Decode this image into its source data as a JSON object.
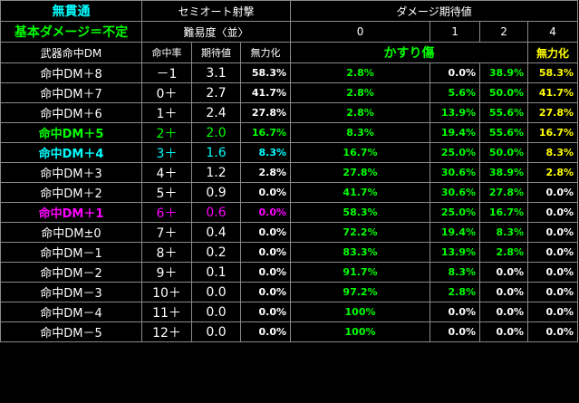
{
  "header": {
    "nopen": "無貫通",
    "basic": "基本ダメージ＝不定",
    "weapon_dm": "武器命中DM",
    "semi": "セミオート射撃",
    "difficulty": "難易度〈並〉",
    "expected": "ダメージ期待値",
    "hit_rate": "命中率",
    "expect_val": "期待値",
    "nullify": "無力化",
    "graze": "かすり傷",
    "nullify2": "無力化",
    "col0": "0",
    "col1": "1",
    "col2": "2",
    "col4": "4"
  },
  "colors": {
    "cyan": "#00ffff",
    "green": "#00ff00",
    "yellow": "#ffff00",
    "magenta": "#ff00ff"
  },
  "rows": [
    {
      "dm": "命中DM＋8",
      "rate": "－1",
      "exp": "3.1",
      "nul": "58.3%",
      "c0": "2.8%",
      "c1": "0.0%",
      "c2": "38.9%",
      "c4": "58.3%",
      "color": "white"
    },
    {
      "dm": "命中DM＋7",
      "rate": "0＋",
      "exp": "2.7",
      "nul": "41.7%",
      "c0": "2.8%",
      "c1": "5.6%",
      "c2": "50.0%",
      "c4": "41.7%",
      "color": "white"
    },
    {
      "dm": "命中DM＋6",
      "rate": "1＋",
      "exp": "2.4",
      "nul": "27.8%",
      "c0": "2.8%",
      "c1": "13.9%",
      "c2": "55.6%",
      "c4": "27.8%",
      "color": "white"
    },
    {
      "dm": "命中DM＋5",
      "rate": "2＋",
      "exp": "2.0",
      "nul": "16.7%",
      "c0": "8.3%",
      "c1": "19.4%",
      "c2": "55.6%",
      "c4": "16.7%",
      "color": "lime"
    },
    {
      "dm": "命中DM＋4",
      "rate": "3＋",
      "exp": "1.6",
      "nul": "8.3%",
      "c0": "16.7%",
      "c1": "25.0%",
      "c2": "50.0%",
      "c4": "8.3%",
      "color": "cyan"
    },
    {
      "dm": "命中DM＋3",
      "rate": "4＋",
      "exp": "1.2",
      "nul": "2.8%",
      "c0": "27.8%",
      "c1": "30.6%",
      "c2": "38.9%",
      "c4": "2.8%",
      "color": "white"
    },
    {
      "dm": "命中DM＋2",
      "rate": "5＋",
      "exp": "0.9",
      "nul": "0.0%",
      "c0": "41.7%",
      "c1": "30.6%",
      "c2": "27.8%",
      "c4": "0.0%",
      "color": "white"
    },
    {
      "dm": "命中DM＋1",
      "rate": "6＋",
      "exp": "0.6",
      "nul": "0.0%",
      "c0": "58.3%",
      "c1": "25.0%",
      "c2": "16.7%",
      "c4": "0.0%",
      "color": "magenta"
    },
    {
      "dm": "命中DM±0",
      "rate": "7＋",
      "exp": "0.4",
      "nul": "0.0%",
      "c0": "72.2%",
      "c1": "19.4%",
      "c2": "8.3%",
      "c4": "0.0%",
      "color": "white"
    },
    {
      "dm": "命中DM－1",
      "rate": "8＋",
      "exp": "0.2",
      "nul": "0.0%",
      "c0": "83.3%",
      "c1": "13.9%",
      "c2": "2.8%",
      "c4": "0.0%",
      "color": "white"
    },
    {
      "dm": "命中DM－2",
      "rate": "9＋",
      "exp": "0.1",
      "nul": "0.0%",
      "c0": "91.7%",
      "c1": "8.3%",
      "c2": "0.0%",
      "c4": "0.0%",
      "color": "white"
    },
    {
      "dm": "命中DM－3",
      "rate": "10＋",
      "exp": "0.0",
      "nul": "0.0%",
      "c0": "97.2%",
      "c1": "2.8%",
      "c2": "0.0%",
      "c4": "0.0%",
      "color": "white"
    },
    {
      "dm": "命中DM－4",
      "rate": "11＋",
      "exp": "0.0",
      "nul": "0.0%",
      "c0": "100%",
      "c1": "0.0%",
      "c2": "0.0%",
      "c4": "0.0%",
      "color": "white"
    },
    {
      "dm": "命中DM－5",
      "rate": "12＋",
      "exp": "0.0",
      "nul": "0.0%",
      "c0": "100%",
      "c1": "0.0%",
      "c2": "0.0%",
      "c4": "0.0%",
      "color": "white"
    }
  ]
}
